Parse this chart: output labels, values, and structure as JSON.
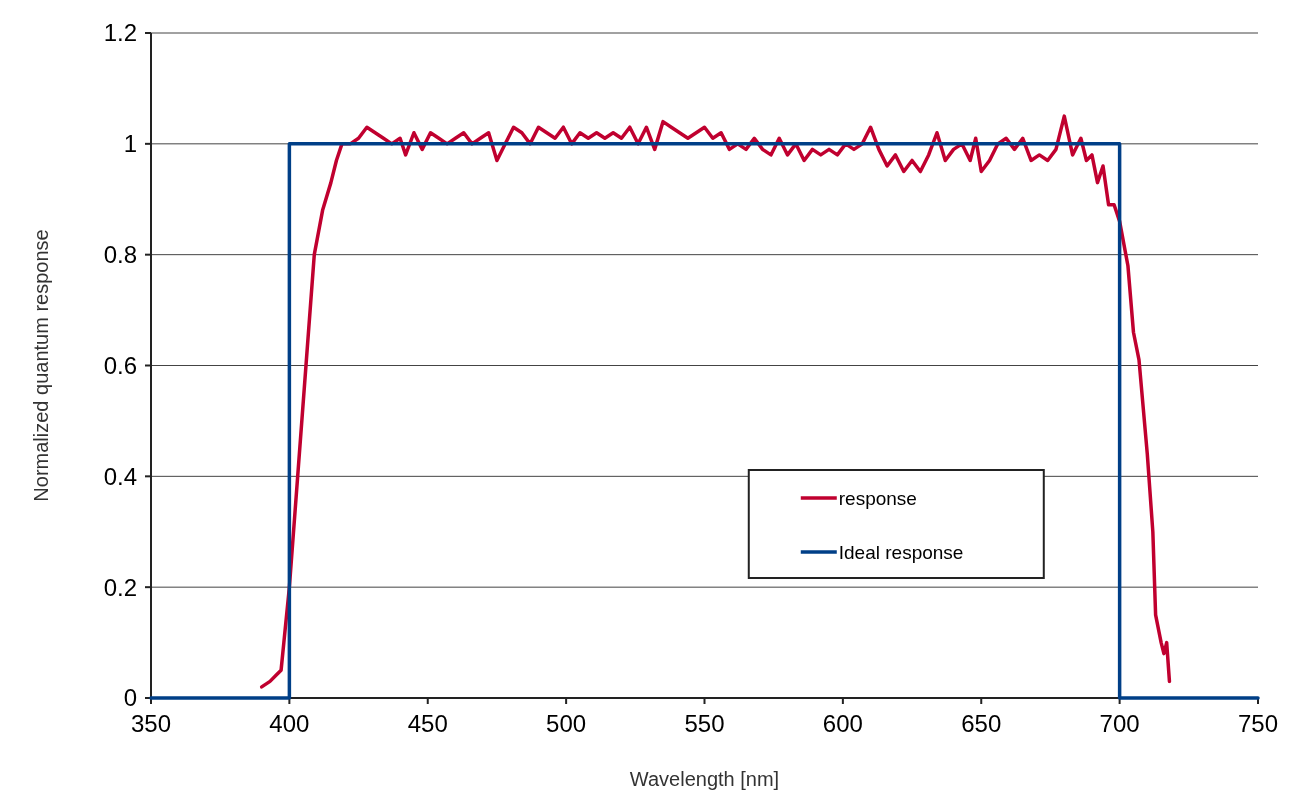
{
  "chart_data": {
    "type": "line",
    "xlabel": "Wavelength [nm]",
    "ylabel": "Normalized quantum response",
    "xlim": [
      350,
      750
    ],
    "xticks": [
      350,
      400,
      450,
      500,
      550,
      600,
      650,
      700,
      750
    ],
    "ylim": [
      0,
      1.2
    ],
    "yticks": [
      0,
      0.2,
      0.4,
      0.6,
      0.8,
      1,
      1.2
    ],
    "grid": "y",
    "legend": "bottom right",
    "marker": "none",
    "line_style": "solid",
    "series": [
      {
        "name": "response",
        "color": "#c0002f",
        "x": [
          390,
          393,
          395,
          397,
          398,
          400,
          403,
          406,
          409,
          412,
          415,
          417,
          419,
          422,
          425,
          428,
          431,
          434,
          437,
          440,
          442,
          445,
          448,
          451,
          454,
          457,
          460,
          463,
          466,
          469,
          472,
          475,
          478,
          481,
          484,
          487,
          490,
          493,
          496,
          499,
          502,
          505,
          508,
          511,
          514,
          517,
          520,
          523,
          526,
          529,
          532,
          535,
          538,
          541,
          544,
          547,
          550,
          553,
          556,
          559,
          562,
          565,
          568,
          571,
          574,
          577,
          580,
          583,
          586,
          589,
          592,
          595,
          598,
          601,
          604,
          607,
          610,
          613,
          616,
          619,
          622,
          625,
          628,
          631,
          634,
          637,
          640,
          643,
          646,
          648,
          650,
          653,
          656,
          659,
          662,
          665,
          668,
          671,
          674,
          677,
          680,
          683,
          686,
          688,
          690,
          692,
          694,
          696,
          698,
          700,
          703,
          705,
          707,
          710,
          712,
          713,
          715,
          716,
          717,
          718
        ],
        "values": [
          0.02,
          0.03,
          0.04,
          0.05,
          0.1,
          0.2,
          0.4,
          0.6,
          0.8,
          0.88,
          0.93,
          0.97,
          1.0,
          1.0,
          1.01,
          1.03,
          1.02,
          1.01,
          1.0,
          1.01,
          0.98,
          1.02,
          0.99,
          1.02,
          1.01,
          1.0,
          1.01,
          1.02,
          1.0,
          1.01,
          1.02,
          0.97,
          1.0,
          1.03,
          1.02,
          1.0,
          1.03,
          1.02,
          1.01,
          1.03,
          1.0,
          1.02,
          1.01,
          1.02,
          1.01,
          1.02,
          1.01,
          1.03,
          1.0,
          1.03,
          0.99,
          1.04,
          1.03,
          1.02,
          1.01,
          1.02,
          1.03,
          1.01,
          1.02,
          0.99,
          1.0,
          0.99,
          1.01,
          0.99,
          0.98,
          1.01,
          0.98,
          1.0,
          0.97,
          0.99,
          0.98,
          0.99,
          0.98,
          1.0,
          0.99,
          1.0,
          1.03,
          0.99,
          0.96,
          0.98,
          0.95,
          0.97,
          0.95,
          0.98,
          1.02,
          0.97,
          0.99,
          1.0,
          0.97,
          1.01,
          0.95,
          0.97,
          1.0,
          1.01,
          0.99,
          1.01,
          0.97,
          0.98,
          0.97,
          0.99,
          1.05,
          0.98,
          1.01,
          0.97,
          0.98,
          0.93,
          0.96,
          0.89,
          0.89,
          0.86,
          0.78,
          0.66,
          0.61,
          0.44,
          0.3,
          0.15,
          0.1,
          0.08,
          0.1,
          0.03
        ]
      },
      {
        "name": "Ideal response",
        "color": "#003f87",
        "x": [
          350,
          400,
          400,
          700,
          700,
          750
        ],
        "values": [
          0,
          0,
          1,
          1,
          0,
          0
        ]
      }
    ]
  }
}
